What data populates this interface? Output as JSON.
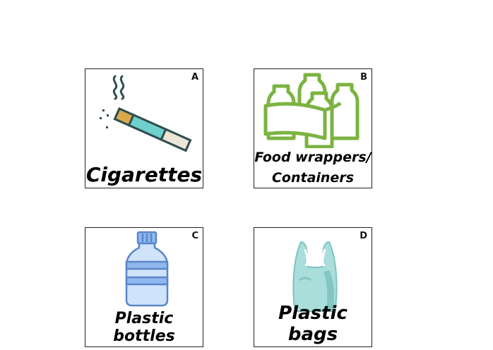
{
  "cards": [
    {
      "letter": "A",
      "label": "Cigarettes",
      "icon": "cigarette-icon"
    },
    {
      "letter": "B",
      "label_line1": "Food wrappers/",
      "label_line2": "Containers",
      "icon": "bottle-pack-icon"
    },
    {
      "letter": "C",
      "label": "Plastic bottles",
      "icon": "plastic-bottle-icon"
    },
    {
      "letter": "D",
      "label": "Plastic bags",
      "icon": "plastic-bag-icon"
    }
  ],
  "colors": {
    "cigarette_filter": "#d8a94a",
    "cigarette_band": "#6fd0cc",
    "cigarette_outline": "#2f4f4f",
    "pack_green": "#7cb342",
    "bottle_blue": "#8fb8ee",
    "bag_teal": "#9fd8d6"
  }
}
